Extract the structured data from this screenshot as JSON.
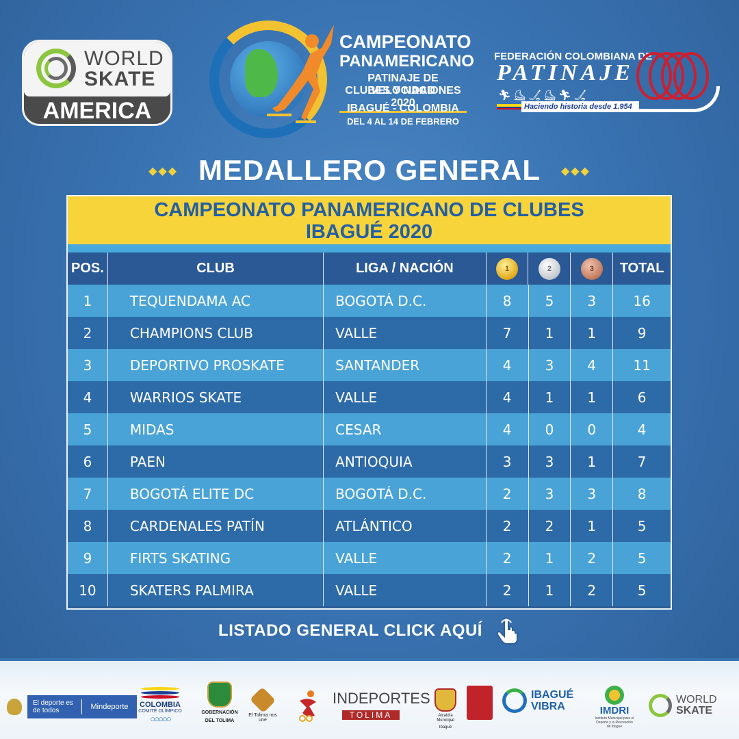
{
  "header": {
    "world_skate": {
      "line1": "WORLD",
      "line2": "SKATE",
      "region": "AMERICA"
    },
    "event": {
      "line1": "CAMPEONATO",
      "line2": "PANAMERICANO",
      "line3": "PATINAJE DE VELOCIDAD",
      "line4": "CLUBES Y NACIONES 2020",
      "line5": "IBAGUÉ - COLOMBIA",
      "line6": "DEL 4 AL 14 DE FEBRERO"
    },
    "federation": {
      "line1": "FEDERACIÓN COLOMBIANA DE",
      "name": "PATINAJE",
      "tagline": "Haciendo historia  desde 1.954"
    }
  },
  "title": {
    "text": "MEDALLERO GENERAL",
    "decor": "◆◆◆"
  },
  "table": {
    "heading_line1": "CAMPEONATO PANAMERICANO DE CLUBES",
    "heading_line2": "IBAGUÉ 2020",
    "columns": {
      "pos": "POS.",
      "club": "CLUB",
      "liga": "LIGA / NACIÓN",
      "gold": "1",
      "silver": "2",
      "bronze": "3",
      "total": "TOTAL"
    },
    "rows": [
      {
        "pos": "1",
        "club": "TEQUENDAMA AC",
        "liga": "BOGOTÁ D.C.",
        "gold": "8",
        "silver": "5",
        "bronze": "3",
        "total": "16"
      },
      {
        "pos": "2",
        "club": "CHAMPIONS CLUB",
        "liga": "VALLE",
        "gold": "7",
        "silver": "1",
        "bronze": "1",
        "total": "9"
      },
      {
        "pos": "3",
        "club": "DEPORTIVO PROSKATE",
        "liga": "SANTANDER",
        "gold": "4",
        "silver": "3",
        "bronze": "4",
        "total": "11"
      },
      {
        "pos": "4",
        "club": "WARRIOS SKATE",
        "liga": "VALLE",
        "gold": "4",
        "silver": "1",
        "bronze": "1",
        "total": "6"
      },
      {
        "pos": "5",
        "club": "MIDAS",
        "liga": "CESAR",
        "gold": "4",
        "silver": "0",
        "bronze": "0",
        "total": "4"
      },
      {
        "pos": "6",
        "club": "PAEN",
        "liga": "ANTIOQUIA",
        "gold": "3",
        "silver": "3",
        "bronze": "1",
        "total": "7"
      },
      {
        "pos": "7",
        "club": "BOGOTÁ ELITE DC",
        "liga": "BOGOTÁ D.C.",
        "gold": "2",
        "silver": "3",
        "bronze": "3",
        "total": "8"
      },
      {
        "pos": "8",
        "club": "CARDENALES PATÍN",
        "liga": "ATLÁNTICO",
        "gold": "2",
        "silver": "2",
        "bronze": "1",
        "total": "5"
      },
      {
        "pos": "9",
        "club": "FIRTS SKATING",
        "liga": "VALLE",
        "gold": "2",
        "silver": "1",
        "bronze": "2",
        "total": "5"
      },
      {
        "pos": "10",
        "club": "SKATERS PALMIRA",
        "liga": "VALLE",
        "gold": "2",
        "silver": "1",
        "bronze": "2",
        "total": "5"
      }
    ]
  },
  "cta": {
    "text": "LISTADO GENERAL CLICK AQUÍ",
    "icon": "pointer-hand-icon"
  },
  "sponsors": {
    "mindeporte": {
      "a": "El deporte es de todos",
      "b": "Mindeporte"
    },
    "colombia": {
      "name": "COLOMBIA",
      "sub": "COMITÉ OLÍMPICO",
      "rings": "○○○○○"
    },
    "gobernacion": {
      "line1": "GOBERNACIÓN",
      "line2": "DEL TOLIMA"
    },
    "tolima_une": "El Tolima nos une",
    "indeportes": {
      "a": "INDEPORTES",
      "b": "TOLIMA"
    },
    "alcaldia": {
      "line1": "Alcaldía Municipal",
      "line2": "Ibagué"
    },
    "ibague_vibra": {
      "a": "IBAGUÉ",
      "b": "VIBRA"
    },
    "imdri": {
      "name": "IMDRI",
      "sub": "Instituto Municipal para el Deporte y la Recreación de Ibagué"
    },
    "world_skate": {
      "a": "WORLD",
      "b": "SKATE"
    }
  },
  "colors": {
    "background": "#3a74b3",
    "table_heading": "#f6d43a",
    "row_light": "#4aa3d7",
    "row_dark": "#2d6aa8",
    "accent_gold": "#f2d13a"
  }
}
